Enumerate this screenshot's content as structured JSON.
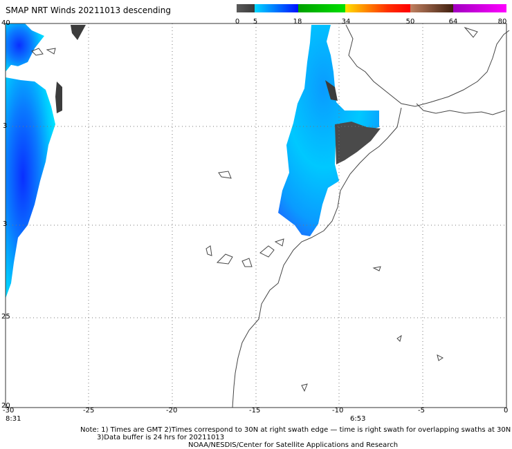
{
  "title": "SMAP NRT Winds  20211013 descending",
  "colorbar": {
    "labels": [
      "0",
      "5",
      "18",
      "34",
      "50",
      "64",
      "80"
    ],
    "segments": [
      {
        "from": 0,
        "to": 5,
        "color": "#5a5a5a",
        "to_color": "#3a3a3a"
      },
      {
        "from": 5,
        "to": 18,
        "color": "#00d8ff",
        "to_color": "#0010ff"
      },
      {
        "from": 18,
        "to": 34,
        "color": "#00c000",
        "to_color": "#00ff40"
      },
      {
        "from": 34,
        "to": 50,
        "color": "#ffd000",
        "to_color": "#ff0000"
      },
      {
        "from": 50,
        "to": 64,
        "color": "#c08060",
        "to_color": "#402010"
      },
      {
        "from": 64,
        "to": 80,
        "color": "#c000c0",
        "to_color": "#ff00ff"
      }
    ]
  },
  "map": {
    "lon_range": [
      -30,
      0
    ],
    "lat_range": [
      20,
      40
    ],
    "lon_labels": [
      "-30",
      "-25",
      "-20",
      "-15",
      "-10",
      "-5",
      "0"
    ],
    "lat_labels_left": [
      "40",
      "3",
      "3",
      "25",
      "20"
    ],
    "time_labels": {
      "left": "8:31",
      "middle": "6:53"
    }
  },
  "notes": {
    "line1": "Note: 1) Times are GMT 2)Times correspond to 30N at right swath edge — time is right swath for overlapping swaths at 30N",
    "line2": "3)Data buffer is 24 hrs for 20211013",
    "line3": "NOAA/NESDIS/Center for Satellite Applications and Research"
  }
}
